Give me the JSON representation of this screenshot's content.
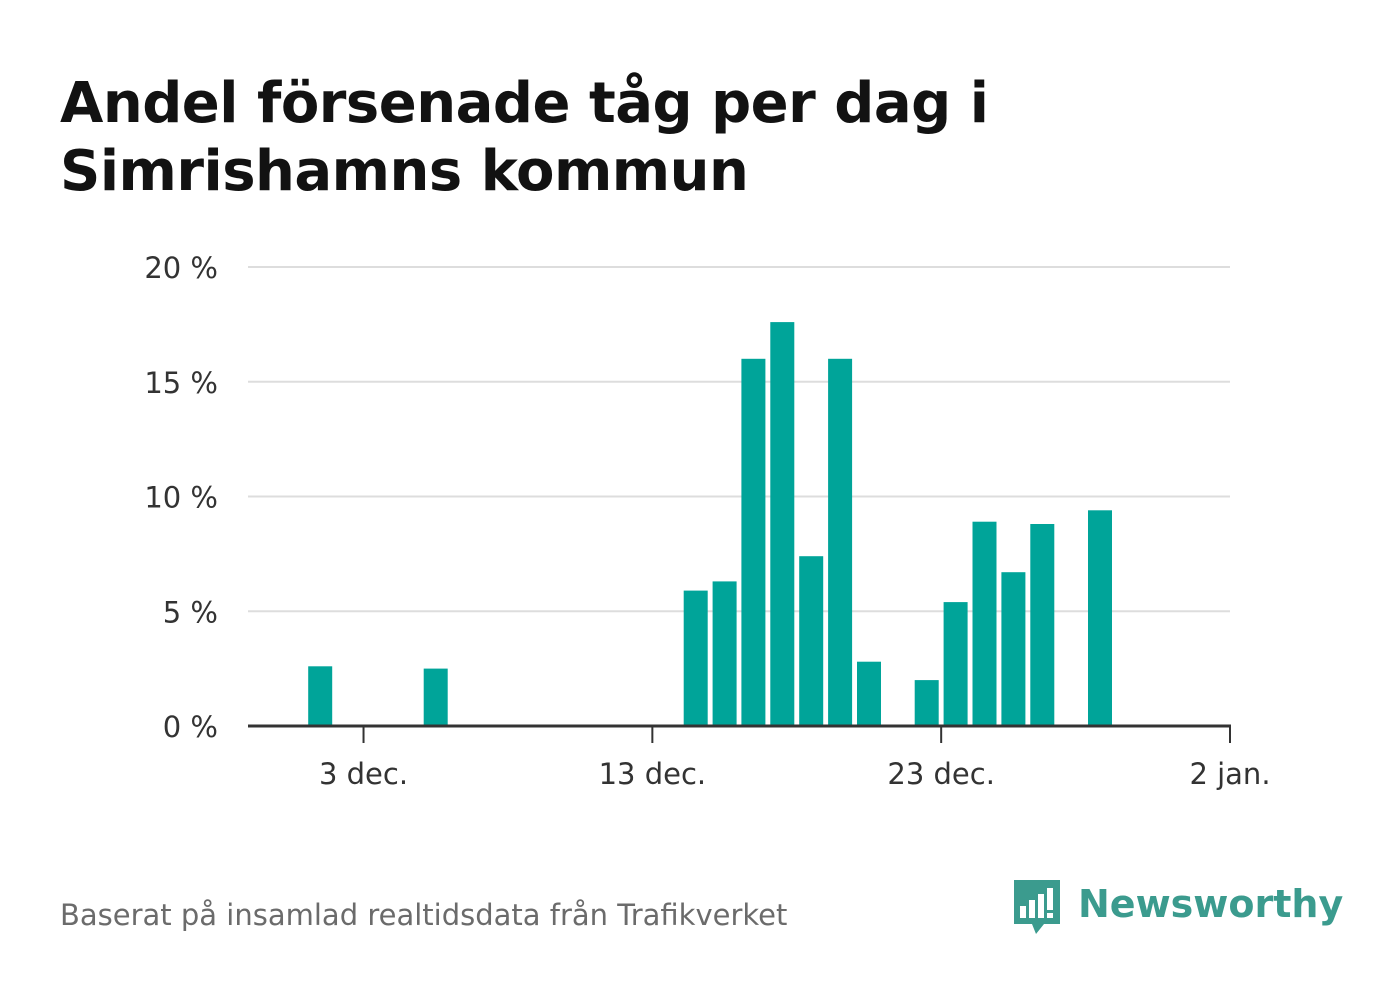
{
  "header": {
    "title": "Andel försenade tåg per dag i Simrishamns kommun"
  },
  "footer": {
    "source": "Baserat på insamlad realtidsdata från Trafikverket",
    "brand": "Newsworthy",
    "brand_color": "#3b9b8e"
  },
  "colors": {
    "bar": "#00a499",
    "grid": "#dddddd",
    "axis": "#333333",
    "tick_label": "#333333"
  },
  "chart_data": {
    "type": "bar",
    "title": "Andel försenade tåg per dag i Simrishamns kommun",
    "xlabel": "",
    "ylabel": "",
    "x_axis": {
      "start": "2022-11-29",
      "end": "2023-01-02",
      "ticks": [
        {
          "date": "2022-12-03",
          "label": "3 dec."
        },
        {
          "date": "2022-12-13",
          "label": "13 dec."
        },
        {
          "date": "2022-12-23",
          "label": "23 dec."
        },
        {
          "date": "2023-01-02",
          "label": "2 jan."
        }
      ]
    },
    "y_axis": {
      "ylim": [
        0,
        20
      ],
      "ticks": [
        {
          "value": 0,
          "label": "0 %"
        },
        {
          "value": 5,
          "label": "5 %"
        },
        {
          "value": 10,
          "label": "10 %"
        },
        {
          "value": 15,
          "label": "15 %"
        },
        {
          "value": 20,
          "label": "20 %"
        }
      ]
    },
    "grid": true,
    "legend": "none",
    "points": [
      {
        "date": "2022-12-02",
        "value": 2.6
      },
      {
        "date": "2022-12-06",
        "value": 2.5
      },
      {
        "date": "2022-12-15",
        "value": 5.9
      },
      {
        "date": "2022-12-16",
        "value": 6.3
      },
      {
        "date": "2022-12-17",
        "value": 16.0
      },
      {
        "date": "2022-12-18",
        "value": 17.6
      },
      {
        "date": "2022-12-19",
        "value": 7.4
      },
      {
        "date": "2022-12-20",
        "value": 16.0
      },
      {
        "date": "2022-12-21",
        "value": 2.8
      },
      {
        "date": "2022-12-23",
        "value": 2.0
      },
      {
        "date": "2022-12-24",
        "value": 5.4
      },
      {
        "date": "2022-12-25",
        "value": 8.9
      },
      {
        "date": "2022-12-26",
        "value": 6.7
      },
      {
        "date": "2022-12-27",
        "value": 8.8
      },
      {
        "date": "2022-12-29",
        "value": 9.4
      }
    ]
  }
}
